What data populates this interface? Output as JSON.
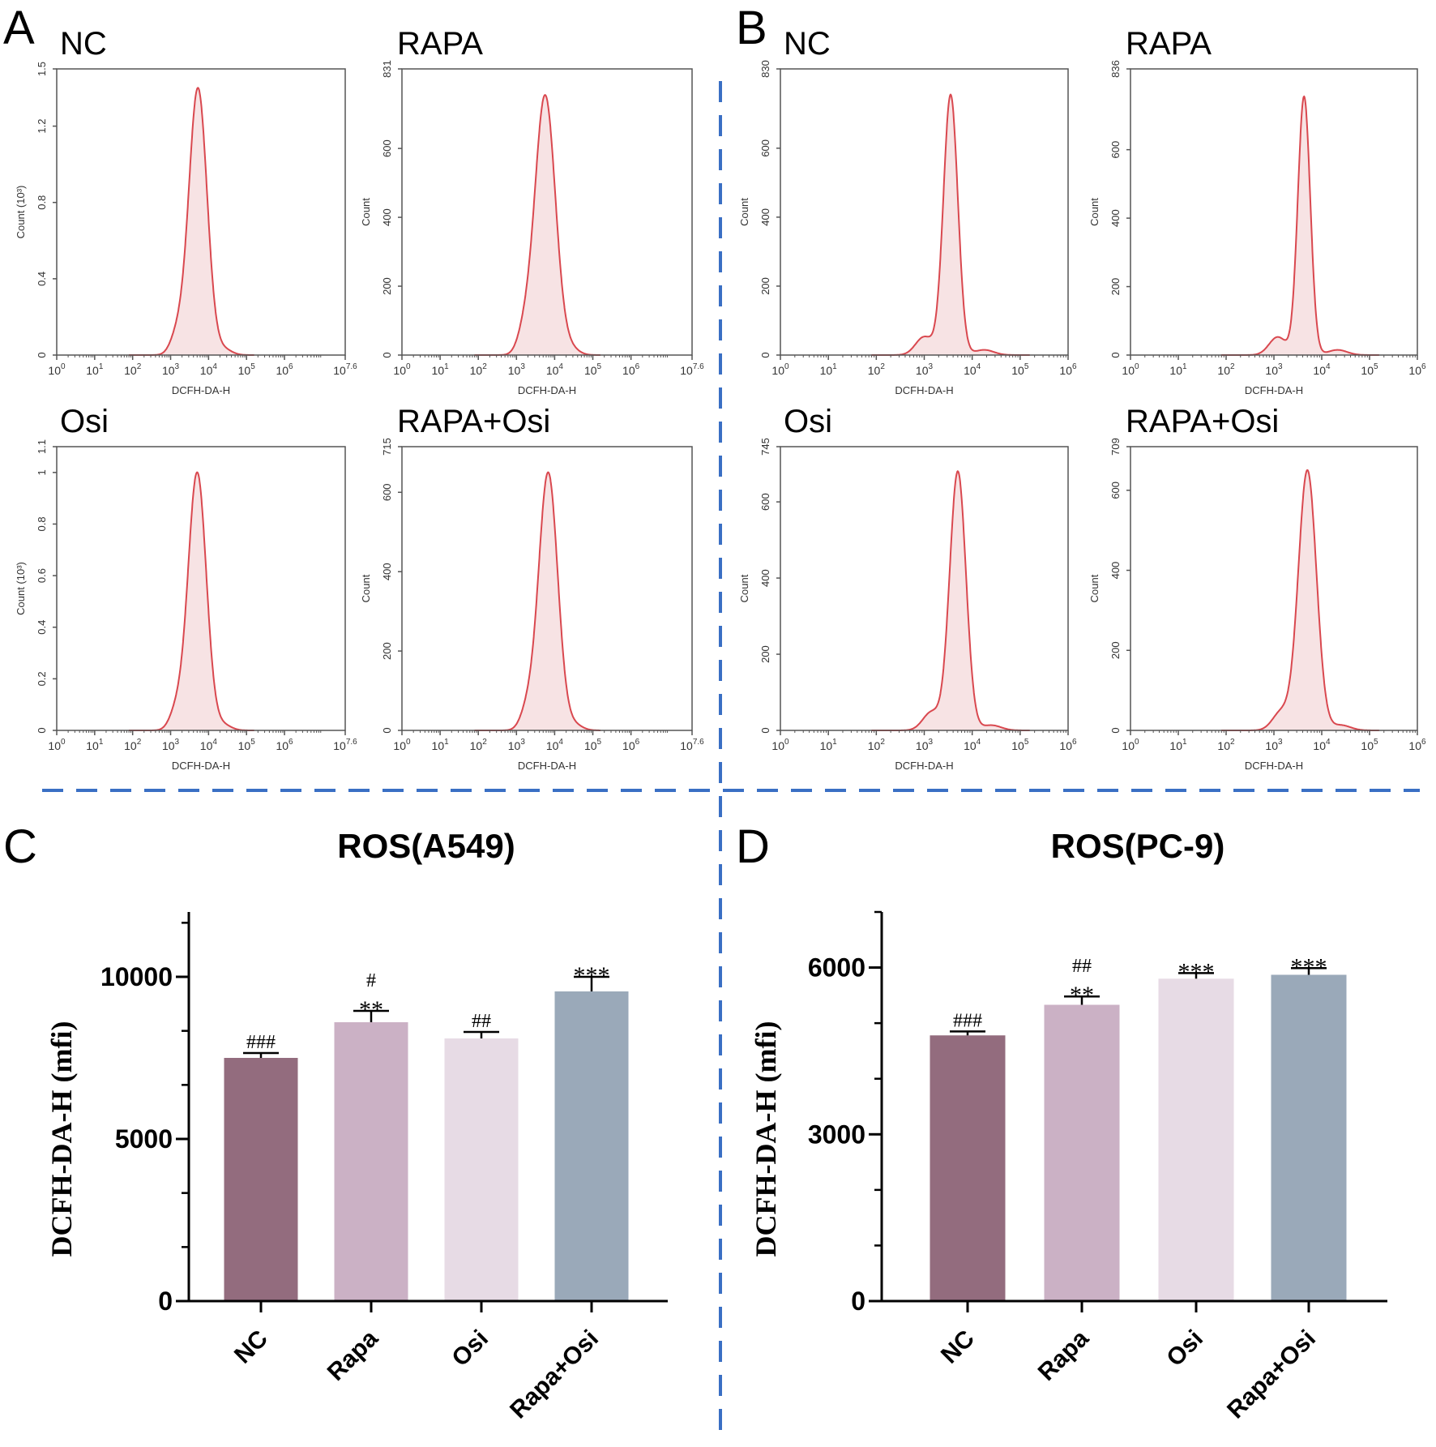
{
  "panel_letters": [
    "A",
    "B",
    "C",
    "D"
  ],
  "colors": {
    "divider": "#3a6fc4",
    "hist_line": "#d9484f",
    "hist_fill": "#f7e3e4",
    "axis": "#000000",
    "frame": "#555555"
  },
  "chart_data": [
    {
      "type": "area",
      "panel": "A",
      "title": "NC",
      "xlabel": "DCFH-DA-H",
      "ylabel": "Count (10³)",
      "xscale": "log",
      "xlim_log10": [
        0,
        7.6
      ],
      "xticks": [
        "10^0",
        "10^1",
        "10^2",
        "10^3",
        "10^4",
        "10^5",
        "10^6",
        "10^7.6"
      ],
      "ylim": [
        0,
        1.5
      ],
      "yticks": [
        "0",
        "0.4",
        "0.8",
        "1.2",
        "1.5"
      ],
      "ytick_values": [
        0,
        0.4,
        0.8,
        1.2,
        1.5
      ],
      "peak_log10": 3.72,
      "peak_count": 1.4,
      "sigma_log10": 0.24
    },
    {
      "type": "area",
      "panel": "A",
      "title": "RAPA",
      "xlabel": "DCFH-DA-H",
      "ylabel": "Count",
      "xscale": "log",
      "xlim_log10": [
        0,
        7.6
      ],
      "xticks": [
        "10^0",
        "10^1",
        "10^2",
        "10^3",
        "10^4",
        "10^5",
        "10^6",
        "10^7.6"
      ],
      "ylim": [
        0,
        831
      ],
      "yticks": [
        "0",
        "200",
        "400",
        "600",
        "831"
      ],
      "ytick_values": [
        0,
        200,
        400,
        600,
        831
      ],
      "peak_log10": 3.75,
      "peak_count": 755,
      "sigma_log10": 0.27
    },
    {
      "type": "area",
      "panel": "A",
      "title": "Osi",
      "xlabel": "DCFH-DA-H",
      "ylabel": "Count (10³)",
      "xscale": "log",
      "xlim_log10": [
        0,
        7.6
      ],
      "xticks": [
        "10^0",
        "10^1",
        "10^2",
        "10^3",
        "10^4",
        "10^5",
        "10^6",
        "10^7.6"
      ],
      "ylim": [
        0,
        1.1
      ],
      "yticks": [
        "0",
        "0.2",
        "0.4",
        "0.6",
        "0.8",
        "1",
        "1.1"
      ],
      "ytick_values": [
        0,
        0.2,
        0.4,
        0.6,
        0.8,
        1,
        1.1
      ],
      "peak_log10": 3.7,
      "peak_count": 1.0,
      "sigma_log10": 0.24
    },
    {
      "type": "area",
      "panel": "A",
      "title": "RAPA+Osi",
      "xlabel": "DCFH-DA-H",
      "ylabel": "Count",
      "xscale": "log",
      "xlim_log10": [
        0,
        7.6
      ],
      "xticks": [
        "10^0",
        "10^1",
        "10^2",
        "10^3",
        "10^4",
        "10^5",
        "10^6",
        "10^7.6"
      ],
      "ylim": [
        0,
        715
      ],
      "yticks": [
        "0",
        "200",
        "400",
        "600",
        "715"
      ],
      "ytick_values": [
        0,
        200,
        400,
        600,
        715
      ],
      "peak_log10": 3.83,
      "peak_count": 650,
      "sigma_log10": 0.25
    },
    {
      "type": "area",
      "panel": "B",
      "title": "NC",
      "xlabel": "DCFH-DA-H",
      "ylabel": "Count",
      "xscale": "log",
      "xlim_log10": [
        0,
        6
      ],
      "xticks": [
        "10^0",
        "10^1",
        "10^2",
        "10^3",
        "10^4",
        "10^5",
        "10^6"
      ],
      "ylim": [
        0,
        830
      ],
      "yticks": [
        "0",
        "200",
        "400",
        "600",
        "830"
      ],
      "ytick_values": [
        0,
        200,
        400,
        600,
        830
      ],
      "peak_log10": 3.55,
      "peak_count": 755,
      "sigma_log10": 0.15
    },
    {
      "type": "area",
      "panel": "B",
      "title": "RAPA",
      "xlabel": "DCFH-DA-H",
      "ylabel": "Count",
      "xscale": "log",
      "xlim_log10": [
        0,
        6
      ],
      "xticks": [
        "10^0",
        "10^1",
        "10^2",
        "10^3",
        "10^4",
        "10^5",
        "10^6"
      ],
      "ylim": [
        0,
        836
      ],
      "yticks": [
        "0",
        "200",
        "400",
        "600",
        "836"
      ],
      "ytick_values": [
        0,
        200,
        400,
        600,
        836
      ],
      "peak_log10": 3.63,
      "peak_count": 755,
      "sigma_log10": 0.13
    },
    {
      "type": "area",
      "panel": "B",
      "title": "Osi",
      "xlabel": "DCFH-DA-H",
      "ylabel": "Count",
      "xscale": "log",
      "xlim_log10": [
        0,
        6
      ],
      "xticks": [
        "10^0",
        "10^1",
        "10^2",
        "10^3",
        "10^4",
        "10^5",
        "10^6"
      ],
      "ylim": [
        0,
        745
      ],
      "yticks": [
        "0",
        "200",
        "400",
        "600",
        "745"
      ],
      "ytick_values": [
        0,
        200,
        400,
        600,
        745
      ],
      "peak_log10": 3.7,
      "peak_count": 680,
      "sigma_log10": 0.17
    },
    {
      "type": "area",
      "panel": "B",
      "title": "RAPA+Osi",
      "xlabel": "DCFH-DA-H",
      "ylabel": "Count",
      "xscale": "log",
      "xlim_log10": [
        0,
        6
      ],
      "xticks": [
        "10^0",
        "10^1",
        "10^2",
        "10^3",
        "10^4",
        "10^5",
        "10^6"
      ],
      "ylim": [
        0,
        709
      ],
      "yticks": [
        "0",
        "200",
        "400",
        "600",
        "709"
      ],
      "ytick_values": [
        0,
        200,
        400,
        600,
        709
      ],
      "peak_log10": 3.7,
      "peak_count": 650,
      "sigma_log10": 0.19
    },
    {
      "type": "bar",
      "panel": "C",
      "title": "ROS(A549)",
      "ylabel": "DCFH-DA-H (mfi)",
      "categories": [
        "NC",
        "Rapa",
        "Osi",
        "Rapa+Osi"
      ],
      "values": [
        7500,
        8600,
        8100,
        9550
      ],
      "errors": [
        150,
        350,
        200,
        450
      ],
      "annotations": [
        [
          "###"
        ],
        [
          "**",
          "#"
        ],
        [
          "##"
        ],
        [
          "***"
        ]
      ],
      "ylim": [
        0,
        12000
      ],
      "yticks": [
        "0",
        "5000",
        "10000"
      ],
      "ytick_values": [
        0,
        5000,
        10000
      ],
      "minor_step": 1666.67,
      "bar_colors": [
        "#936c7e",
        "#cbb1c5",
        "#e7dbe5",
        "#9aa9b9"
      ]
    },
    {
      "type": "bar",
      "panel": "D",
      "title": "ROS(PC-9)",
      "ylabel": "DCFH-DA-H (mfi)",
      "categories": [
        "NC",
        "Rapa",
        "Osi",
        "Rapa+Osi"
      ],
      "values": [
        4780,
        5330,
        5800,
        5870
      ],
      "errors": [
        70,
        150,
        100,
        120
      ],
      "annotations": [
        [
          "###"
        ],
        [
          "**",
          "##"
        ],
        [
          "***"
        ],
        [
          "***"
        ]
      ],
      "ylim": [
        0,
        7000
      ],
      "yticks": [
        "0",
        "3000",
        "6000"
      ],
      "ytick_values": [
        0,
        3000,
        6000
      ],
      "minor_step": 1000,
      "bar_colors": [
        "#936c7e",
        "#cbb1c5",
        "#e7dbe5",
        "#9aa9b9"
      ]
    }
  ]
}
